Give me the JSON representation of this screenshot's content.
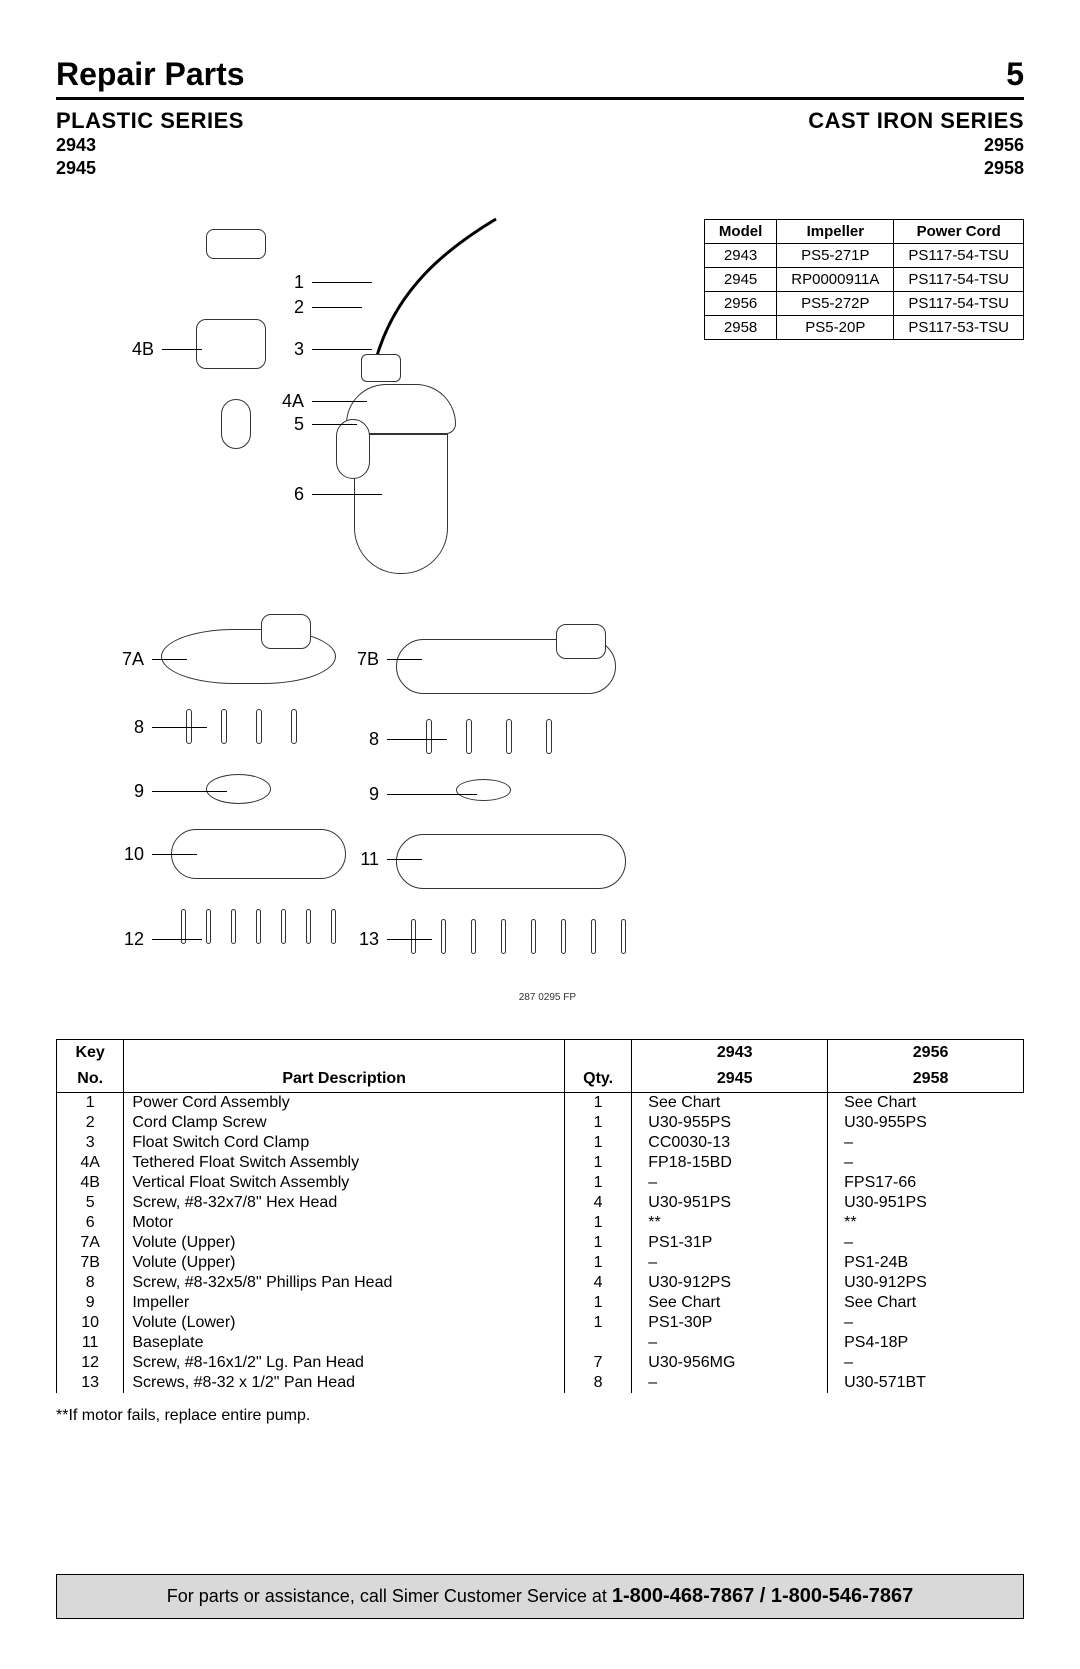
{
  "header": {
    "title": "Repair Parts",
    "page_number": "5"
  },
  "series_left": {
    "title": "PLASTIC SERIES",
    "models": [
      "2943",
      "2945"
    ]
  },
  "series_right": {
    "title": "CAST IRON SERIES",
    "models": [
      "2956",
      "2958"
    ]
  },
  "diagram": {
    "reference": "287 0295 FP",
    "callouts_left": [
      "4B",
      "7A",
      "8",
      "9",
      "10",
      "12"
    ],
    "callouts_mid": [
      "1",
      "2",
      "3",
      "4A",
      "5",
      "6",
      "7B",
      "8",
      "9",
      "11",
      "13"
    ]
  },
  "model_table": {
    "columns": [
      "Model",
      "Impeller",
      "Power Cord"
    ],
    "rows": [
      [
        "2943",
        "PS5-271P",
        "PS117-54-TSU"
      ],
      [
        "2945",
        "RP0000911A",
        "PS117-54-TSU"
      ],
      [
        "2956",
        "PS5-272P",
        "PS117-54-TSU"
      ],
      [
        "2958",
        "PS5-20P",
        "PS117-53-TSU"
      ]
    ]
  },
  "parts_table": {
    "header": {
      "key_line1": "Key",
      "key_line2": "No.",
      "desc": "Part Description",
      "qty": "Qty.",
      "col3_line1": "2943",
      "col3_line2": "2945",
      "col4_line1": "2956",
      "col4_line2": "2958"
    },
    "rows": [
      {
        "key": "1",
        "desc": "Power Cord Assembly",
        "qty": "1",
        "c3": "See Chart",
        "c4": "See Chart"
      },
      {
        "key": "2",
        "desc": "Cord Clamp Screw",
        "qty": "1",
        "c3": "U30-955PS",
        "c4": "U30-955PS"
      },
      {
        "key": "3",
        "desc": "Float Switch Cord Clamp",
        "qty": "1",
        "c3": "CC0030-13",
        "c4": "–"
      },
      {
        "key": "4A",
        "desc": "Tethered Float Switch Assembly",
        "qty": "1",
        "c3": "FP18-15BD",
        "c4": "–"
      },
      {
        "key": "4B",
        "desc": "Vertical Float Switch Assembly",
        "qty": "1",
        "c3": "–",
        "c4": "FPS17-66"
      },
      {
        "key": "5",
        "desc": "Screw, #8-32x7/8\" Hex Head",
        "qty": "4",
        "c3": "U30-951PS",
        "c4": "U30-951PS"
      },
      {
        "key": "6",
        "desc": "Motor",
        "qty": "1",
        "c3": "**",
        "c4": "**"
      },
      {
        "key": "7A",
        "desc": "Volute (Upper)",
        "qty": "1",
        "c3": "PS1-31P",
        "c4": "–"
      },
      {
        "key": "7B",
        "desc": "Volute (Upper)",
        "qty": "1",
        "c3": "–",
        "c4": "PS1-24B"
      },
      {
        "key": "8",
        "desc": "Screw, #8-32x5/8\" Phillips Pan Head",
        "qty": "4",
        "c3": "U30-912PS",
        "c4": "U30-912PS"
      },
      {
        "key": "9",
        "desc": "Impeller",
        "qty": "1",
        "c3": "See Chart",
        "c4": "See Chart"
      },
      {
        "key": "10",
        "desc": "Volute (Lower)",
        "qty": "1",
        "c3": "PS1-30P",
        "c4": "–"
      },
      {
        "key": "11",
        "desc": "Baseplate",
        "qty": "",
        "c3": "–",
        "c4": "PS4-18P"
      },
      {
        "key": "12",
        "desc": "Screw, #8-16x1/2\" Lg. Pan Head",
        "qty": "7",
        "c3": "U30-956MG",
        "c4": "–"
      },
      {
        "key": "13",
        "desc": "Screws, #8-32 x 1/2\" Pan Head",
        "qty": "8",
        "c3": "–",
        "c4": "U30-571BT"
      }
    ]
  },
  "footnote": "**If motor fails, replace entire pump.",
  "footer": {
    "text": "For parts or assistance, call Simer Customer Service at ",
    "phone": "1-800-468-7867 / 1-800-546-7867"
  }
}
